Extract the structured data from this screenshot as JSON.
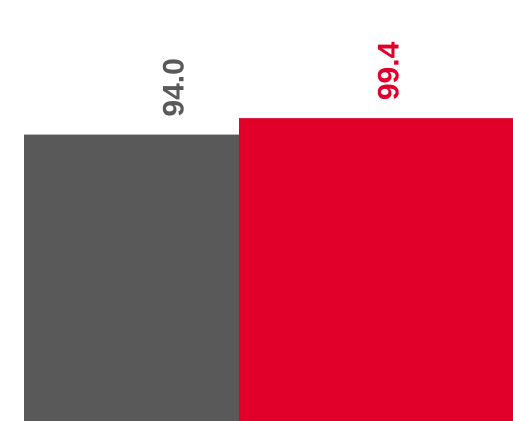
{
  "chart_data": {
    "type": "bar",
    "categories": [
      "",
      ""
    ],
    "values": [
      94.0,
      99.4
    ],
    "value_labels": [
      "94.0",
      "99.4"
    ],
    "colors": [
      "#595959",
      "#e1002a"
    ],
    "ylim": [
      0,
      100
    ],
    "grid": false,
    "title": "",
    "xlabel": "",
    "ylabel": ""
  }
}
